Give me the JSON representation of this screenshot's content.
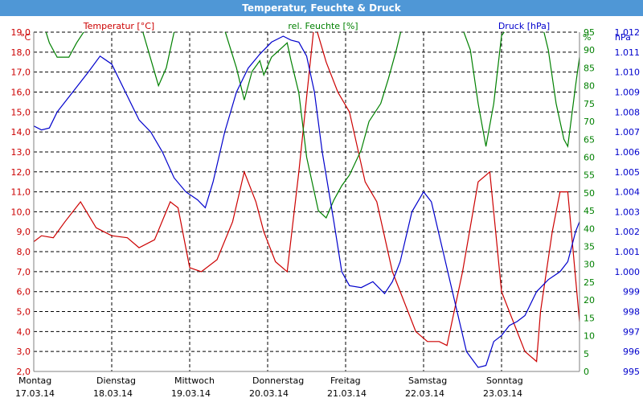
{
  "window": {
    "title": "Temperatur, Feuchte & Druck"
  },
  "colors": {
    "temperature": "#cc0000",
    "humidity": "#008000",
    "pressure": "#0000cc",
    "titlebar": "#4f97d6",
    "grid": "#000000"
  },
  "chart_data": {
    "type": "line",
    "title": "Temperatur, Feuchte & Druck",
    "grid": true,
    "days": [
      {
        "weekday": "Montag",
        "date": "17.03.14"
      },
      {
        "weekday": "Dienstag",
        "date": "18.03.14"
      },
      {
        "weekday": "Mittwoch",
        "date": "19.03.14"
      },
      {
        "weekday": "Donnerstag",
        "date": "20.03.14"
      },
      {
        "weekday": "Freitag",
        "date": "21.03.14"
      },
      {
        "weekday": "Samstag",
        "date": "22.03.14"
      },
      {
        "weekday": "Sonntag",
        "date": "23.03.14"
      }
    ],
    "x_unit": "days since Montag 17.03.14 00:00",
    "axes": {
      "temperature": {
        "label": "Temperatur [°C]",
        "unit": "°C",
        "min": 2,
        "max": 19,
        "ticks": [
          "2,0",
          "3,0",
          "4,0",
          "5,0",
          "6,0",
          "7,0",
          "8,0",
          "9,0",
          "10,0",
          "11,0",
          "12,0",
          "13,0",
          "14,0",
          "15,0",
          "16,0",
          "17,0",
          "18,0",
          "19,0"
        ]
      },
      "humidity": {
        "label": "rel. Feuchte [%]",
        "unit": "%",
        "min": 0,
        "max": 95,
        "ticks": [
          "0",
          "5",
          "10",
          "15",
          "20",
          "25",
          "30",
          "35",
          "40",
          "45",
          "50",
          "55",
          "60",
          "65",
          "70",
          "75",
          "80",
          "85",
          "90",
          "95"
        ]
      },
      "pressure": {
        "label": "Druck [hPa]",
        "unit": "hPa",
        "min": 995,
        "max": 1012,
        "ticks": [
          "995",
          "996",
          "997",
          "998",
          "999",
          "1.000",
          "1.001",
          "1.002",
          "1.003",
          "1.004",
          "1.005",
          "1.006",
          "1.007",
          "1.008",
          "1.009",
          "1.010",
          "1.011",
          "1.012"
        ]
      }
    },
    "series": [
      {
        "name": "Temperatur [°C]",
        "axis": "temperature",
        "color": "#cc0000",
        "points": [
          [
            0,
            8.5
          ],
          [
            0.1,
            8.8
          ],
          [
            0.25,
            8.7
          ],
          [
            0.4,
            9.5
          ],
          [
            0.6,
            10.5
          ],
          [
            0.8,
            9.2
          ],
          [
            1.0,
            8.8
          ],
          [
            1.2,
            8.7
          ],
          [
            1.35,
            8.2
          ],
          [
            1.55,
            8.6
          ],
          [
            1.75,
            10.5
          ],
          [
            1.85,
            10.2
          ],
          [
            2.0,
            7.2
          ],
          [
            2.15,
            7.0
          ],
          [
            2.35,
            7.6
          ],
          [
            2.55,
            9.5
          ],
          [
            2.7,
            12.0
          ],
          [
            2.85,
            10.5
          ],
          [
            2.95,
            9.0
          ],
          [
            3.1,
            7.5
          ],
          [
            3.25,
            7.0
          ],
          [
            3.4,
            12.0
          ],
          [
            3.6,
            19.5
          ],
          [
            3.75,
            17.5
          ],
          [
            3.9,
            16.0
          ],
          [
            4.05,
            15.0
          ],
          [
            4.25,
            11.5
          ],
          [
            4.4,
            10.5
          ],
          [
            4.6,
            7.0
          ],
          [
            4.8,
            5.0
          ],
          [
            4.9,
            4.0
          ],
          [
            5.05,
            3.5
          ],
          [
            5.2,
            3.5
          ],
          [
            5.3,
            3.3
          ],
          [
            5.5,
            7.0
          ],
          [
            5.7,
            11.5
          ],
          [
            5.85,
            12.0
          ],
          [
            6.0,
            6.0
          ],
          [
            6.2,
            4.0
          ],
          [
            6.3,
            3.0
          ],
          [
            6.45,
            2.5
          ],
          [
            6.5,
            5.0
          ],
          [
            6.65,
            9.0
          ],
          [
            6.75,
            11.0
          ],
          [
            6.85,
            11.0
          ],
          [
            7.0,
            4.5
          ],
          [
            7.1,
            4.0
          ]
        ]
      },
      {
        "name": "rel. Feuchte [%]",
        "axis": "humidity",
        "color": "#008000",
        "points": [
          [
            0,
            99
          ],
          [
            0.1,
            99
          ],
          [
            0.2,
            92
          ],
          [
            0.3,
            88
          ],
          [
            0.45,
            88
          ],
          [
            0.55,
            92
          ],
          [
            0.7,
            97
          ],
          [
            0.9,
            97
          ],
          [
            1.1,
            97
          ],
          [
            1.3,
            98
          ],
          [
            1.4,
            95
          ],
          [
            1.6,
            80
          ],
          [
            1.7,
            85
          ],
          [
            1.8,
            95
          ],
          [
            1.9,
            99
          ],
          [
            2.4,
            99
          ],
          [
            2.6,
            85
          ],
          [
            2.7,
            76
          ],
          [
            2.8,
            84
          ],
          [
            2.9,
            87
          ],
          [
            2.95,
            83
          ],
          [
            3.05,
            88
          ],
          [
            3.15,
            90
          ],
          [
            3.25,
            92
          ],
          [
            3.3,
            87
          ],
          [
            3.4,
            78
          ],
          [
            3.5,
            60
          ],
          [
            3.65,
            45
          ],
          [
            3.75,
            43
          ],
          [
            3.85,
            48
          ],
          [
            3.95,
            52
          ],
          [
            4.05,
            55
          ],
          [
            4.2,
            62
          ],
          [
            4.3,
            70
          ],
          [
            4.45,
            75
          ],
          [
            4.55,
            82
          ],
          [
            4.65,
            90
          ],
          [
            4.75,
            99
          ],
          [
            5.0,
            99
          ],
          [
            5.45,
            99
          ],
          [
            5.6,
            90
          ],
          [
            5.7,
            75
          ],
          [
            5.8,
            63
          ],
          [
            5.9,
            75
          ],
          [
            6.0,
            94
          ],
          [
            6.1,
            97
          ],
          [
            6.2,
            98
          ],
          [
            6.3,
            99
          ],
          [
            6.5,
            99
          ],
          [
            6.6,
            90
          ],
          [
            6.7,
            75
          ],
          [
            6.8,
            65
          ],
          [
            6.85,
            63
          ],
          [
            6.95,
            80
          ],
          [
            7.05,
            96
          ],
          [
            7.1,
            99
          ]
        ]
      },
      {
        "name": "Druck [hPa]",
        "axis": "pressure",
        "color": "#0000cc",
        "points": [
          [
            0,
            1007.3
          ],
          [
            0.1,
            1007.1
          ],
          [
            0.2,
            1007.2
          ],
          [
            0.3,
            1008.0
          ],
          [
            0.5,
            1009.0
          ],
          [
            0.7,
            1010.0
          ],
          [
            0.85,
            1010.8
          ],
          [
            1.0,
            1010.4
          ],
          [
            1.2,
            1008.8
          ],
          [
            1.35,
            1007.6
          ],
          [
            1.5,
            1007.0
          ],
          [
            1.65,
            1006.0
          ],
          [
            1.8,
            1004.7
          ],
          [
            1.95,
            1004.0
          ],
          [
            2.1,
            1003.6
          ],
          [
            2.2,
            1003.2
          ],
          [
            2.3,
            1004.5
          ],
          [
            2.45,
            1007.0
          ],
          [
            2.6,
            1009.0
          ],
          [
            2.75,
            1010.2
          ],
          [
            2.9,
            1010.9
          ],
          [
            3.05,
            1011.5
          ],
          [
            3.2,
            1011.8
          ],
          [
            3.3,
            1011.6
          ],
          [
            3.4,
            1011.5
          ],
          [
            3.5,
            1010.8
          ],
          [
            3.6,
            1009.0
          ],
          [
            3.7,
            1006.0
          ],
          [
            3.85,
            1002.5
          ],
          [
            3.95,
            1000.0
          ],
          [
            4.05,
            999.3
          ],
          [
            4.2,
            999.2
          ],
          [
            4.35,
            999.5
          ],
          [
            4.5,
            998.9
          ],
          [
            4.6,
            999.5
          ],
          [
            4.7,
            1000.5
          ],
          [
            4.85,
            1003.0
          ],
          [
            5.0,
            1004.0
          ],
          [
            5.1,
            1003.5
          ],
          [
            5.25,
            1001.0
          ],
          [
            5.4,
            998.5
          ],
          [
            5.55,
            996.0
          ],
          [
            5.7,
            995.2
          ],
          [
            5.8,
            995.3
          ],
          [
            5.9,
            996.5
          ],
          [
            6.0,
            996.8
          ],
          [
            6.1,
            997.3
          ],
          [
            6.2,
            997.5
          ],
          [
            6.3,
            997.8
          ],
          [
            6.45,
            999.0
          ],
          [
            6.6,
            999.6
          ],
          [
            6.75,
            1000.0
          ],
          [
            6.85,
            1000.5
          ],
          [
            6.95,
            1002.0
          ],
          [
            7.05,
            1003.0
          ],
          [
            7.15,
            1003.3
          ]
        ]
      }
    ]
  }
}
